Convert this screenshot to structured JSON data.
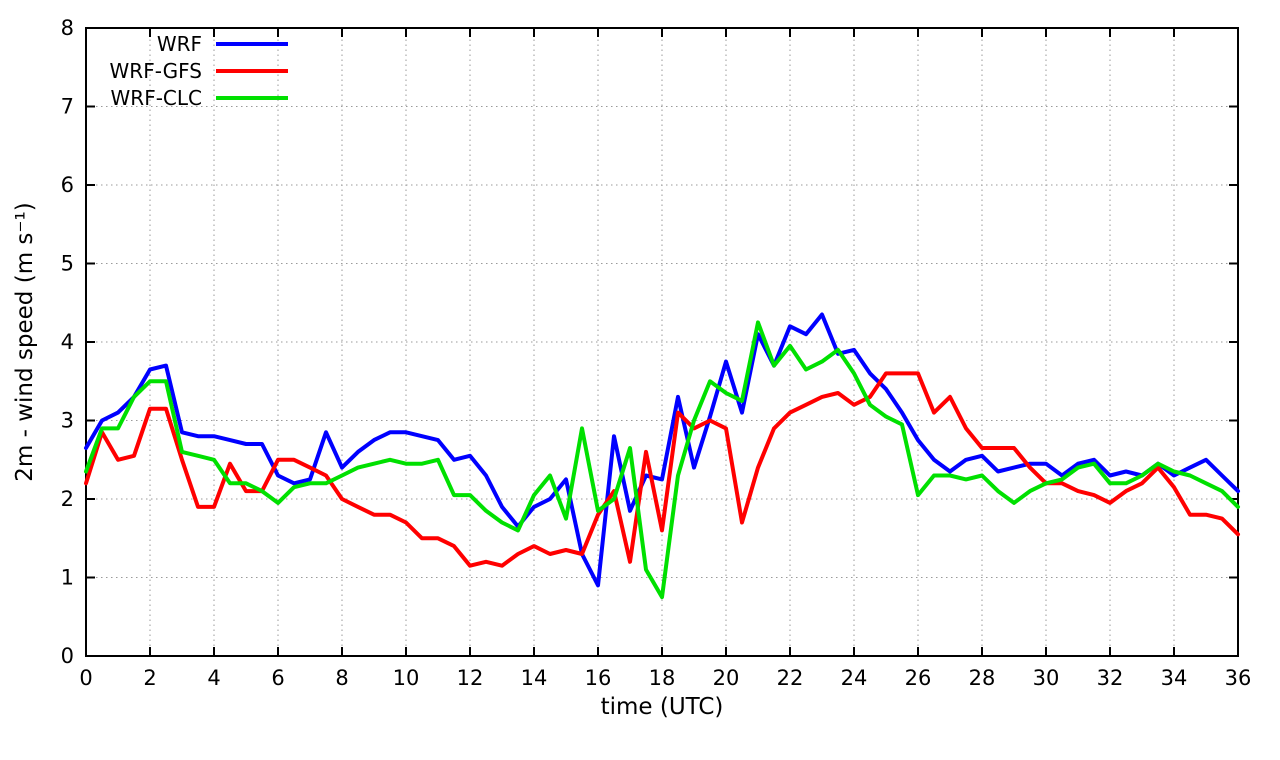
{
  "chart_data": {
    "type": "line",
    "title": "",
    "xlabel": "time (UTC)",
    "ylabel": "2m - wind speed  (m s⁻¹)",
    "xlim": [
      0,
      36
    ],
    "ylim": [
      0,
      8
    ],
    "xticks": [
      0,
      2,
      4,
      6,
      8,
      10,
      12,
      14,
      16,
      18,
      20,
      22,
      24,
      26,
      28,
      30,
      32,
      34,
      36
    ],
    "yticks": [
      0,
      1,
      2,
      3,
      4,
      5,
      6,
      7,
      8
    ],
    "grid": true,
    "legend_position": "top-left",
    "x": [
      0,
      0.5,
      1,
      1.5,
      2,
      2.5,
      3,
      3.5,
      4,
      4.5,
      5,
      5.5,
      6,
      6.5,
      7,
      7.5,
      8,
      8.5,
      9,
      9.5,
      10,
      10.5,
      11,
      11.5,
      12,
      12.5,
      13,
      13.5,
      14,
      14.5,
      15,
      15.5,
      16,
      16.5,
      17,
      17.5,
      18,
      18.5,
      19,
      19.5,
      20,
      20.5,
      21,
      21.5,
      22,
      22.5,
      23,
      23.5,
      24,
      24.5,
      25,
      25.5,
      26,
      26.5,
      27,
      27.5,
      28,
      28.5,
      29,
      29.5,
      30,
      30.5,
      31,
      31.5,
      32,
      32.5,
      33,
      33.5,
      34,
      34.5,
      35,
      35.5,
      36
    ],
    "series": [
      {
        "name": "WRF",
        "color": "#0000ff",
        "values": [
          2.65,
          3.0,
          3.1,
          3.3,
          3.65,
          3.7,
          2.85,
          2.8,
          2.8,
          2.75,
          2.7,
          2.7,
          2.3,
          2.2,
          2.25,
          2.85,
          2.4,
          2.6,
          2.75,
          2.85,
          2.85,
          2.8,
          2.75,
          2.5,
          2.55,
          2.3,
          1.9,
          1.65,
          1.9,
          2.0,
          2.25,
          1.3,
          0.9,
          2.8,
          1.85,
          2.3,
          2.25,
          3.3,
          2.4,
          3.05,
          3.75,
          3.1,
          4.1,
          3.7,
          4.2,
          4.1,
          4.35,
          3.85,
          3.9,
          3.6,
          3.4,
          3.1,
          2.75,
          2.5,
          2.35,
          2.5,
          2.55,
          2.35,
          2.4,
          2.45,
          2.45,
          2.3,
          2.45,
          2.5,
          2.3,
          2.35,
          2.3,
          2.45,
          2.3,
          2.4,
          2.5,
          2.3,
          2.1
        ]
      },
      {
        "name": "WRF-GFS",
        "color": "#ff0000",
        "values": [
          2.2,
          2.85,
          2.5,
          2.55,
          3.15,
          3.15,
          2.5,
          1.9,
          1.9,
          2.45,
          2.1,
          2.1,
          2.5,
          2.5,
          2.4,
          2.3,
          2.0,
          1.9,
          1.8,
          1.8,
          1.7,
          1.5,
          1.5,
          1.4,
          1.15,
          1.2,
          1.15,
          1.3,
          1.4,
          1.3,
          1.35,
          1.3,
          1.8,
          2.1,
          1.2,
          2.6,
          1.6,
          3.1,
          2.9,
          3.0,
          2.9,
          1.7,
          2.4,
          2.9,
          3.1,
          3.2,
          3.3,
          3.35,
          3.2,
          3.3,
          3.6,
          3.6,
          3.6,
          3.1,
          3.3,
          2.9,
          2.65,
          2.65,
          2.65,
          2.4,
          2.2,
          2.2,
          2.1,
          2.05,
          1.95,
          2.1,
          2.2,
          2.4,
          2.15,
          1.8,
          1.8,
          1.75,
          1.55
        ]
      },
      {
        "name": "WRF-CLC",
        "color": "#00e000",
        "values": [
          2.35,
          2.9,
          2.9,
          3.3,
          3.5,
          3.5,
          2.6,
          2.55,
          2.5,
          2.2,
          2.2,
          2.1,
          1.95,
          2.15,
          2.2,
          2.2,
          2.3,
          2.4,
          2.45,
          2.5,
          2.45,
          2.45,
          2.5,
          2.05,
          2.05,
          1.85,
          1.7,
          1.6,
          2.05,
          2.3,
          1.75,
          2.9,
          1.85,
          2.0,
          2.65,
          1.1,
          0.75,
          2.3,
          3.0,
          3.5,
          3.35,
          3.25,
          4.25,
          3.7,
          3.95,
          3.65,
          3.75,
          3.9,
          3.6,
          3.2,
          3.05,
          2.95,
          2.05,
          2.3,
          2.3,
          2.25,
          2.3,
          2.1,
          1.95,
          2.1,
          2.2,
          2.25,
          2.4,
          2.45,
          2.2,
          2.2,
          2.3,
          2.45,
          2.35,
          2.3,
          2.2,
          2.1,
          1.9
        ]
      }
    ]
  }
}
